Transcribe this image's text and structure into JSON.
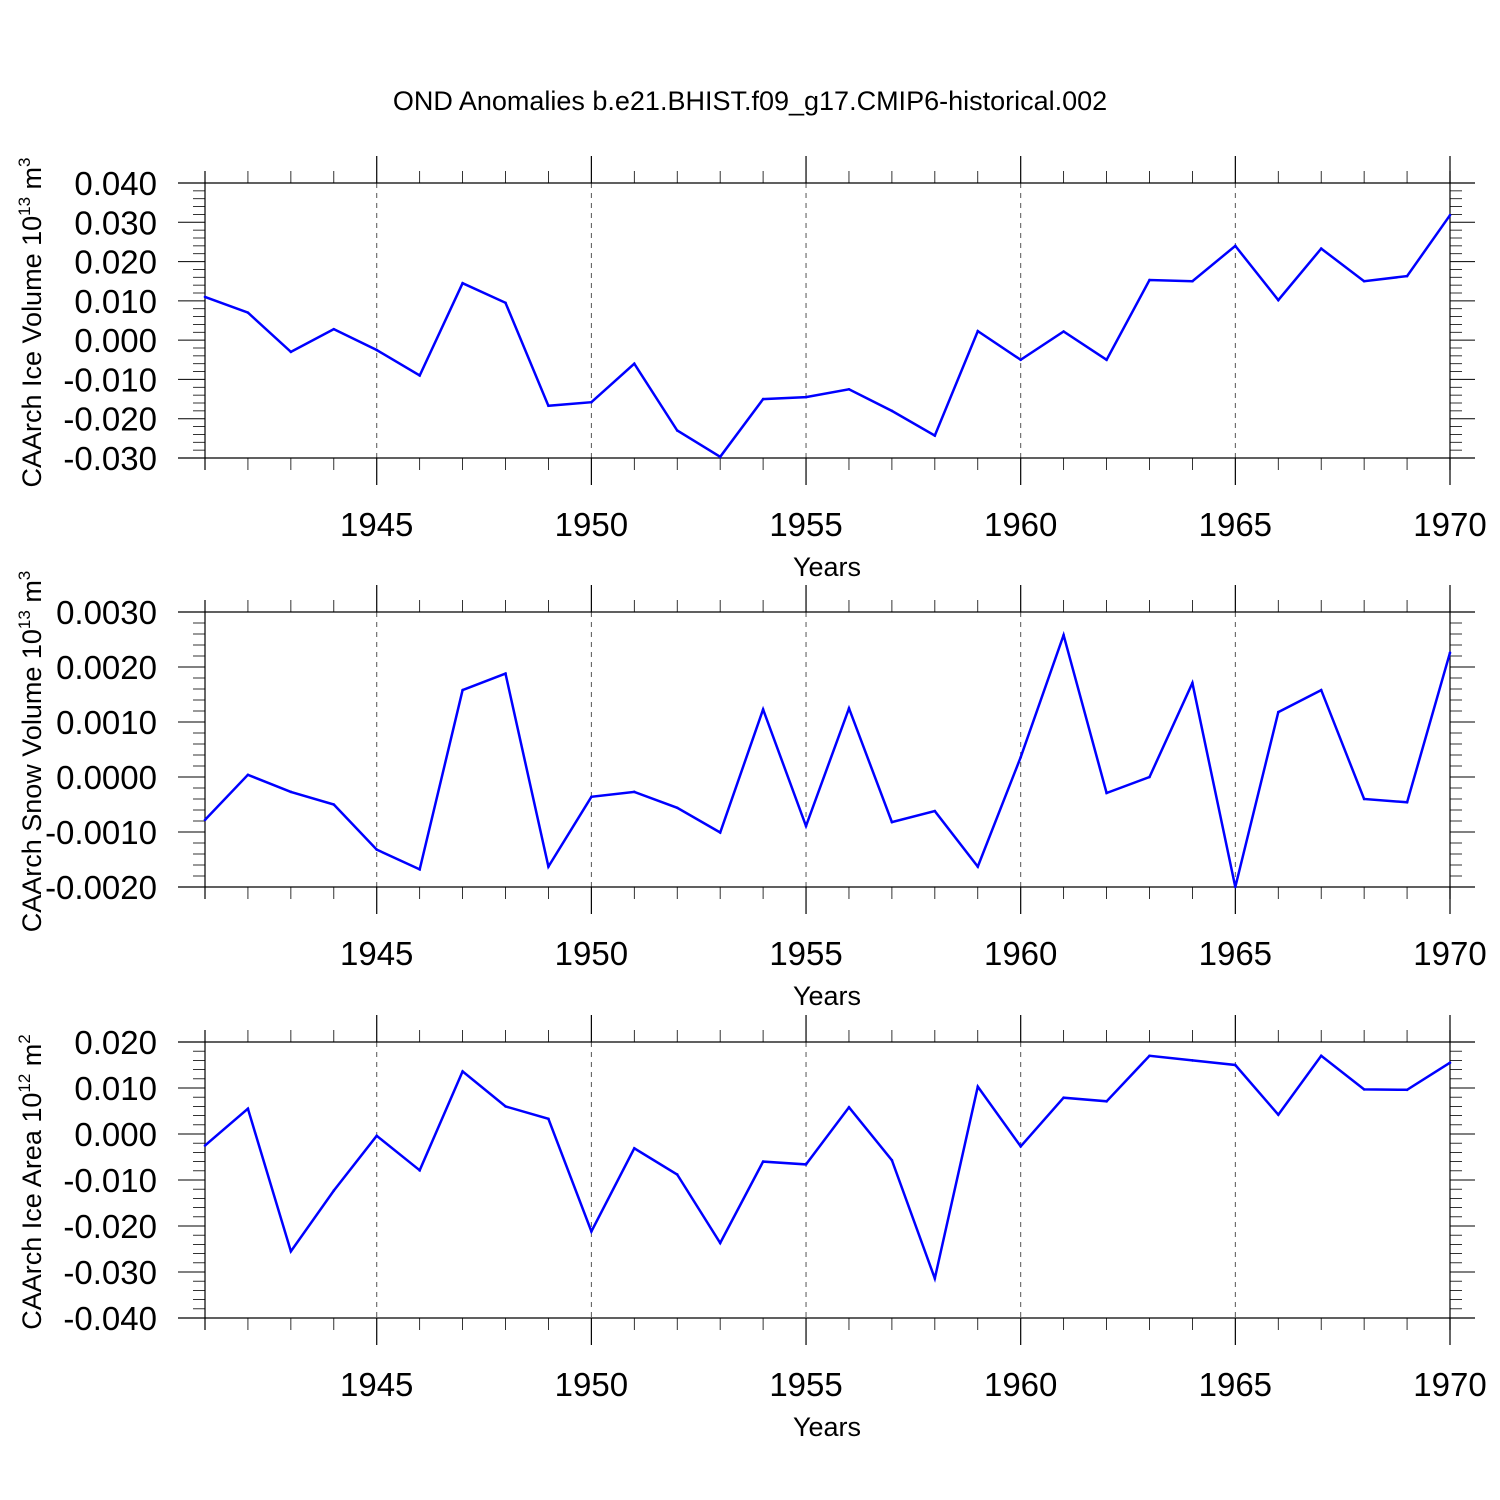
{
  "title": "OND Anomalies b.e21.BHIST.f09_g17.CMIP6-historical.002",
  "colors": {
    "line": "#0000ff",
    "axis": "#000000",
    "grid": "#000000"
  },
  "chart_data": [
    {
      "type": "line",
      "xlabel": "Years",
      "ylabel": {
        "text": "CAArch Ice Volume 10",
        "exp": "13",
        "unit": " m",
        "unit_exp": "3"
      },
      "xlim": [
        1941,
        1970
      ],
      "ylim": [
        -0.03,
        0.04
      ],
      "xticks": [
        1945,
        1950,
        1955,
        1960,
        1965,
        1970
      ],
      "xtick_labels": [
        "1945",
        "1950",
        "1955",
        "1960",
        "1965",
        "1970"
      ],
      "yticks": [
        -0.03,
        -0.02,
        -0.01,
        0.0,
        0.01,
        0.02,
        0.03,
        0.04
      ],
      "ytick_labels": [
        "-0.030",
        "-0.020",
        "-0.010",
        "0.000",
        "0.010",
        "0.020",
        "0.030",
        "0.040"
      ],
      "grid": "vertical dashed at labeled years",
      "x": [
        1941,
        1942,
        1943,
        1944,
        1945,
        1946,
        1947,
        1948,
        1949,
        1950,
        1951,
        1952,
        1953,
        1954,
        1955,
        1956,
        1957,
        1958,
        1959,
        1960,
        1961,
        1962,
        1963,
        1964,
        1965,
        1966,
        1967,
        1968,
        1969,
        1970
      ],
      "values": [
        0.011,
        0.007,
        -0.003,
        0.0028,
        -0.0025,
        -0.009,
        0.0145,
        0.0095,
        -0.0167,
        -0.0158,
        -0.006,
        -0.023,
        -0.0297,
        -0.015,
        -0.0145,
        -0.0125,
        -0.018,
        -0.0243,
        0.0023,
        -0.005,
        0.0022,
        -0.005,
        0.0153,
        0.015,
        0.024,
        0.0102,
        0.0233,
        0.015,
        0.0163,
        0.0318
      ]
    },
    {
      "type": "line",
      "xlabel": "Years",
      "ylabel": {
        "text": "CAArch Snow Volume 10",
        "exp": "13",
        "unit": " m",
        "unit_exp": "3"
      },
      "xlim": [
        1941,
        1970
      ],
      "ylim": [
        -0.002,
        0.003
      ],
      "xticks": [
        1945,
        1950,
        1955,
        1960,
        1965,
        1970
      ],
      "xtick_labels": [
        "1945",
        "1950",
        "1955",
        "1960",
        "1965",
        "1970"
      ],
      "yticks": [
        -0.002,
        -0.001,
        0.0,
        0.001,
        0.002,
        0.003
      ],
      "ytick_labels": [
        "-0.0020",
        "-0.0010",
        "0.0000",
        "0.0010",
        "0.0020",
        "0.0030"
      ],
      "grid": "vertical dashed at labeled years",
      "x": [
        1941,
        1942,
        1943,
        1944,
        1945,
        1946,
        1947,
        1948,
        1949,
        1950,
        1951,
        1952,
        1953,
        1954,
        1955,
        1956,
        1957,
        1958,
        1959,
        1960,
        1961,
        1962,
        1963,
        1964,
        1965,
        1966,
        1967,
        1968,
        1969,
        1970
      ],
      "values": [
        -0.00078,
        4e-05,
        -0.00027,
        -0.0005,
        -0.00132,
        -0.00168,
        0.00158,
        0.00188,
        -0.00163,
        -0.00036,
        -0.00027,
        -0.00056,
        -0.00101,
        0.00123,
        -0.00089,
        0.00125,
        -0.00082,
        -0.00062,
        -0.00163,
        0.00036,
        0.00258,
        -0.00029,
        0.0,
        0.00171,
        -0.002,
        0.00118,
        0.00158,
        -0.0004,
        -0.00046,
        0.00226
      ]
    },
    {
      "type": "line",
      "xlabel": "Years",
      "ylabel": {
        "text": "CAArch Ice Area 10",
        "exp": "12",
        "unit": " m",
        "unit_exp": "2"
      },
      "xlim": [
        1941,
        1970
      ],
      "ylim": [
        -0.04,
        0.02
      ],
      "xticks": [
        1945,
        1950,
        1955,
        1960,
        1965,
        1970
      ],
      "xtick_labels": [
        "1945",
        "1950",
        "1955",
        "1960",
        "1965",
        "1970"
      ],
      "yticks": [
        -0.04,
        -0.03,
        -0.02,
        -0.01,
        0.0,
        0.01,
        0.02
      ],
      "ytick_labels": [
        "-0.040",
        "-0.030",
        "-0.020",
        "-0.010",
        "0.000",
        "0.010",
        "0.020"
      ],
      "grid": "vertical dashed at labeled years",
      "x": [
        1941,
        1942,
        1943,
        1944,
        1945,
        1946,
        1947,
        1948,
        1949,
        1950,
        1951,
        1952,
        1953,
        1954,
        1955,
        1956,
        1957,
        1958,
        1959,
        1960,
        1961,
        1962,
        1963,
        1964,
        1965,
        1966,
        1967,
        1968,
        1969,
        1970
      ],
      "values": [
        -0.0025,
        0.0055,
        -0.0255,
        -0.0123,
        -0.0004,
        -0.0079,
        0.0136,
        0.006,
        0.0033,
        -0.0212,
        -0.0031,
        -0.0088,
        -0.0237,
        -0.006,
        -0.0066,
        0.0058,
        -0.0057,
        -0.0314,
        0.0103,
        -0.0027,
        0.0079,
        0.0071,
        0.017,
        0.016,
        0.015,
        0.0042,
        0.017,
        0.0097,
        0.0096,
        0.0155
      ]
    }
  ]
}
